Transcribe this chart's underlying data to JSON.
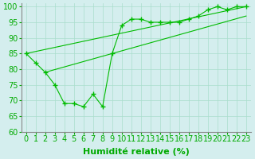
{
  "xlabel": "Humidité relative (%)",
  "background_color": "#d4eeee",
  "grid_color": "#aaddcc",
  "line_color": "#00bb00",
  "xlim": [
    -0.5,
    23.5
  ],
  "ylim": [
    60,
    101
  ],
  "yticks": [
    60,
    65,
    70,
    75,
    80,
    85,
    90,
    95,
    100
  ],
  "xticks": [
    0,
    1,
    2,
    3,
    4,
    5,
    6,
    7,
    8,
    9,
    10,
    11,
    12,
    13,
    14,
    15,
    16,
    17,
    18,
    19,
    20,
    21,
    22,
    23
  ],
  "line1_x": [
    0,
    1,
    2,
    3,
    4,
    5,
    6,
    7,
    8,
    9,
    10,
    11,
    12,
    13,
    14,
    15,
    16,
    17,
    18,
    19,
    20,
    21,
    22,
    23
  ],
  "line1_y": [
    85,
    82,
    79,
    75,
    69,
    69,
    68,
    72,
    68,
    85,
    94,
    96,
    96,
    95,
    95,
    95,
    95,
    96,
    97,
    99,
    100,
    99,
    100,
    100
  ],
  "line2_x": [
    0,
    23
  ],
  "line2_y": [
    85,
    100
  ],
  "line3_x": [
    2,
    23
  ],
  "line3_y": [
    79,
    97
  ],
  "font_color": "#00aa00",
  "xlabel_fontsize": 8,
  "tick_fontsize": 7
}
